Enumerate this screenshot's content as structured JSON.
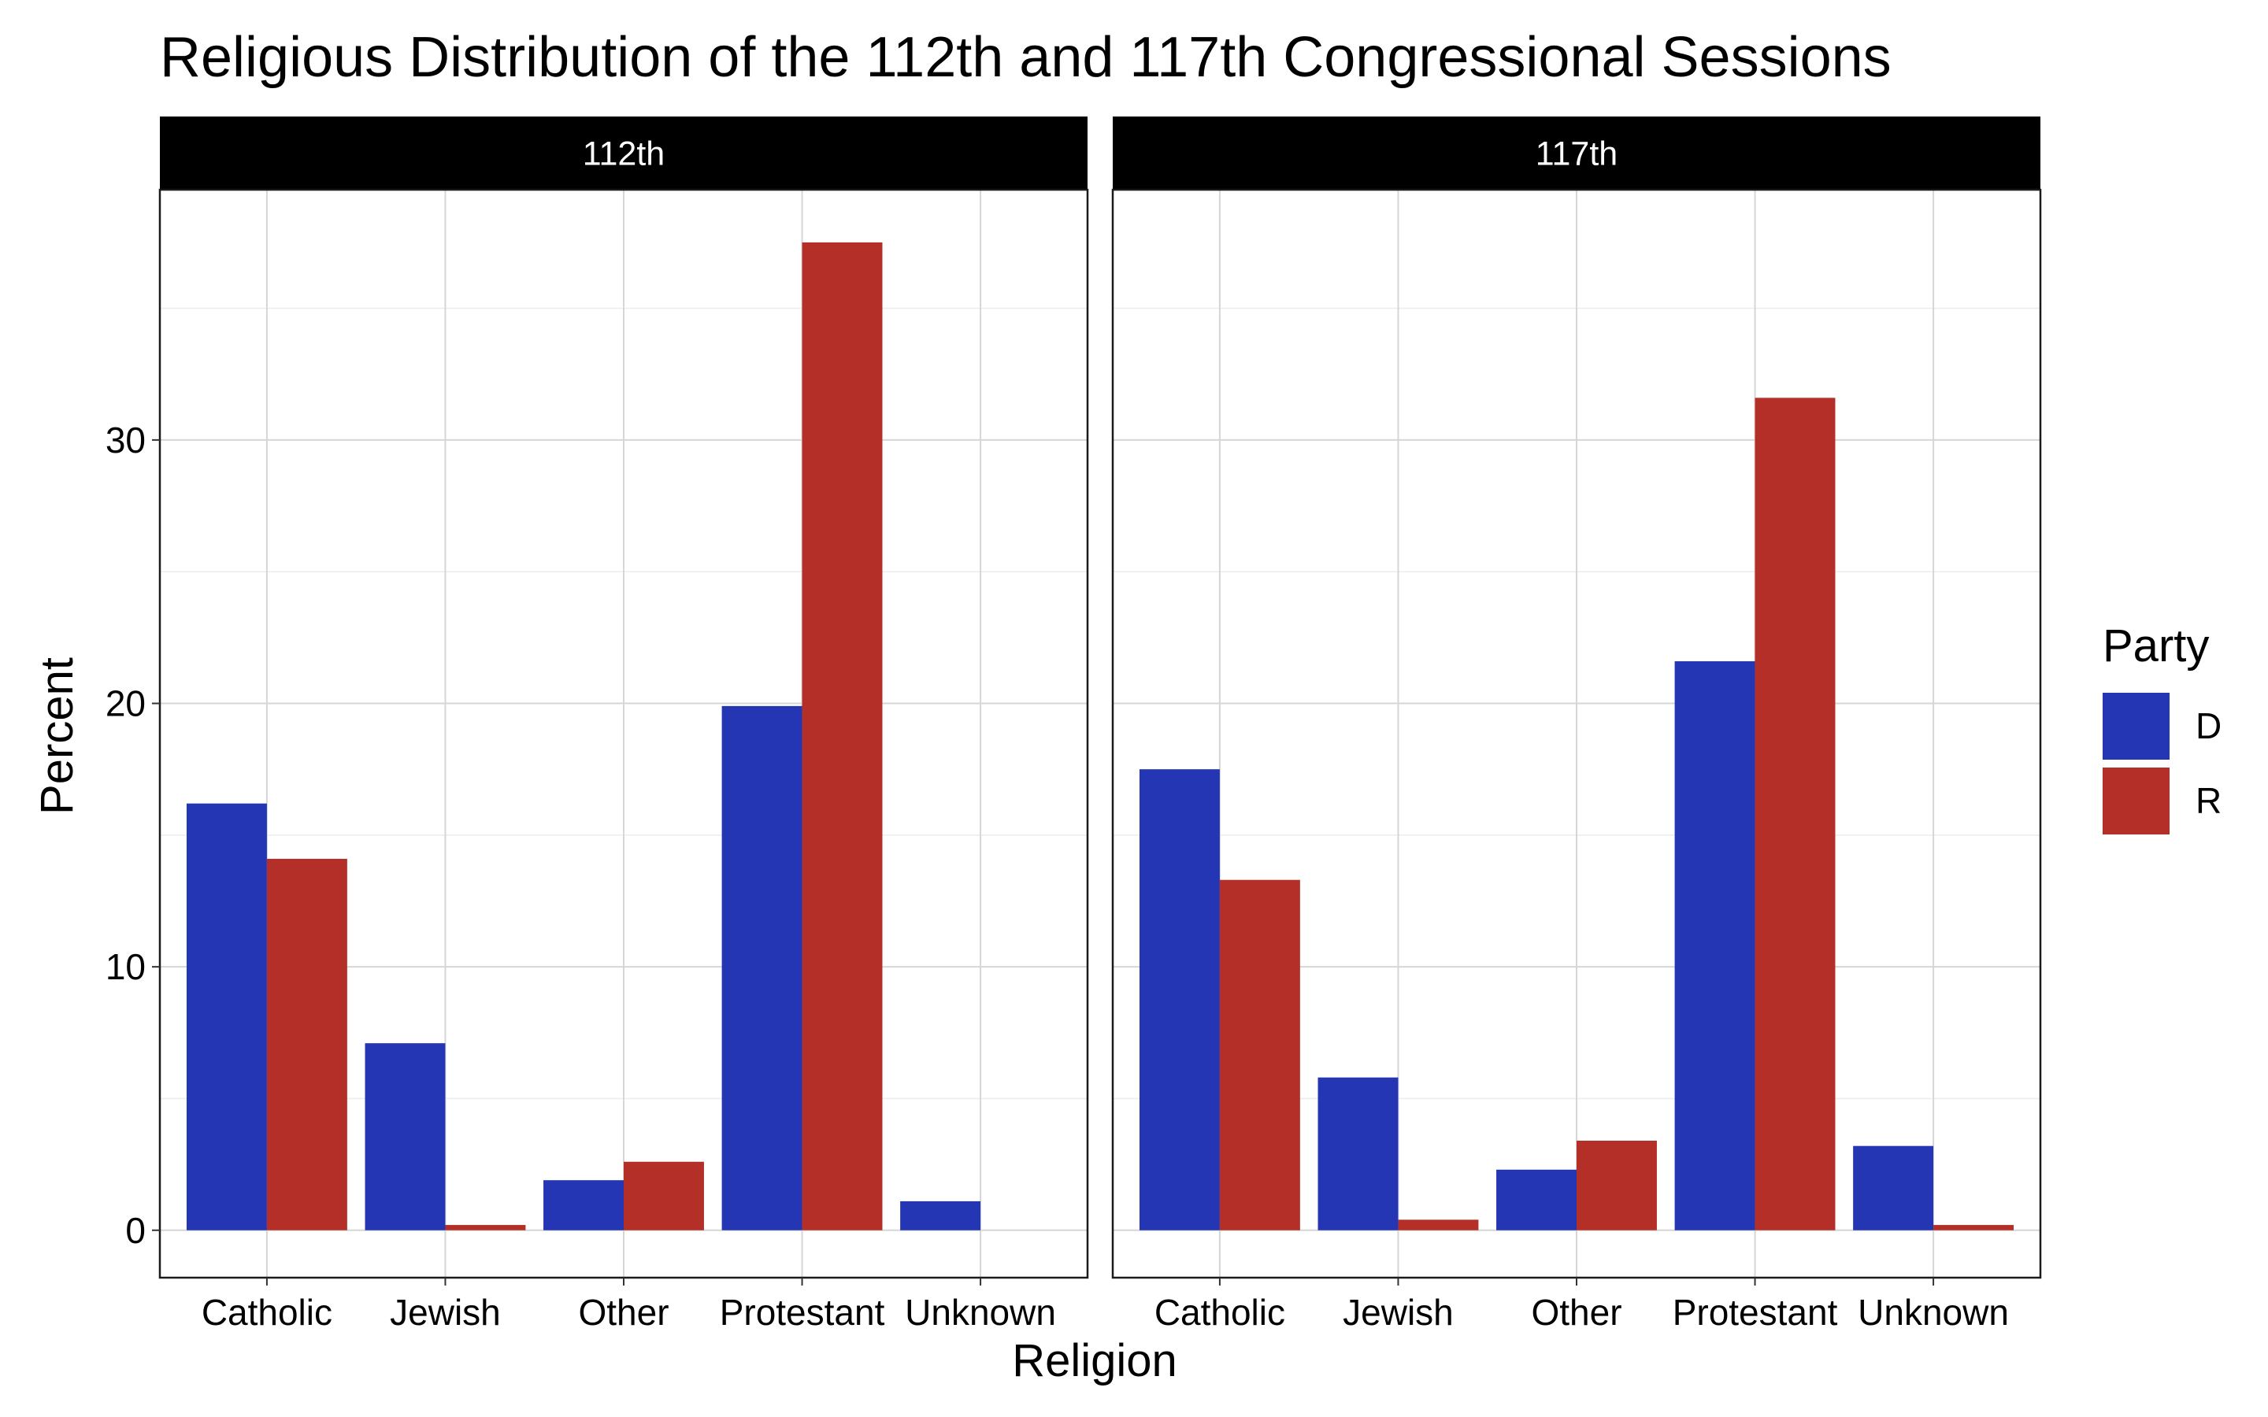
{
  "chart_data": {
    "type": "bar",
    "title": "Religious Distribution of the 112th and 117th Congressional Sessions",
    "xlabel": "Religion",
    "ylabel": "Percent",
    "ylim": [
      -1.8,
      39.5
    ],
    "y_ticks": [
      0,
      10,
      20,
      30
    ],
    "grid": true,
    "categories": [
      "Catholic",
      "Jewish",
      "Other",
      "Protestant",
      "Unknown"
    ],
    "legend": {
      "title": "Party",
      "position": "right",
      "entries": [
        {
          "label": "D",
          "color": "#2436b4"
        },
        {
          "label": "R",
          "color": "#b42f27"
        }
      ]
    },
    "facets": [
      {
        "label": "112th",
        "series": [
          {
            "name": "D",
            "values": [
              16.2,
              7.1,
              1.9,
              19.9,
              1.1
            ]
          },
          {
            "name": "R",
            "values": [
              14.1,
              0.2,
              2.6,
              37.5,
              null
            ]
          }
        ]
      },
      {
        "label": "117th",
        "series": [
          {
            "name": "D",
            "values": [
              17.5,
              5.8,
              2.3,
              21.6,
              3.2
            ]
          },
          {
            "name": "R",
            "values": [
              13.3,
              0.4,
              3.4,
              31.6,
              0.2
            ]
          }
        ]
      }
    ]
  }
}
